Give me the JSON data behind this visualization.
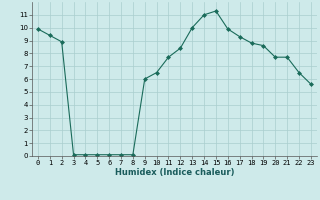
{
  "xlabel": "Humidex (Indice chaleur)",
  "ylabel": "",
  "x": [
    0,
    1,
    2,
    3,
    4,
    5,
    6,
    7,
    8,
    9,
    10,
    11,
    12,
    13,
    14,
    15,
    16,
    17,
    18,
    19,
    20,
    21,
    22,
    23
  ],
  "y": [
    9.9,
    9.4,
    8.9,
    0.1,
    0.1,
    0.1,
    0.1,
    0.1,
    0.1,
    6.0,
    6.5,
    7.7,
    8.4,
    10.0,
    11.0,
    11.3,
    9.9,
    9.3,
    8.8,
    8.6,
    7.7,
    7.7,
    6.5,
    5.6
  ],
  "line_color": "#1a6b5a",
  "marker": "D",
  "marker_size": 2.0,
  "bg_color": "#ceeaea",
  "grid_color": "#aacece",
  "xlim": [
    -0.5,
    23.5
  ],
  "ylim": [
    0,
    12
  ],
  "yticks": [
    0,
    1,
    2,
    3,
    4,
    5,
    6,
    7,
    8,
    9,
    10,
    11
  ],
  "xticks": [
    0,
    1,
    2,
    3,
    4,
    5,
    6,
    7,
    8,
    9,
    10,
    11,
    12,
    13,
    14,
    15,
    16,
    17,
    18,
    19,
    20,
    21,
    22,
    23
  ],
  "tick_fontsize": 5.0,
  "xlabel_fontsize": 6.0,
  "line_width": 0.8
}
